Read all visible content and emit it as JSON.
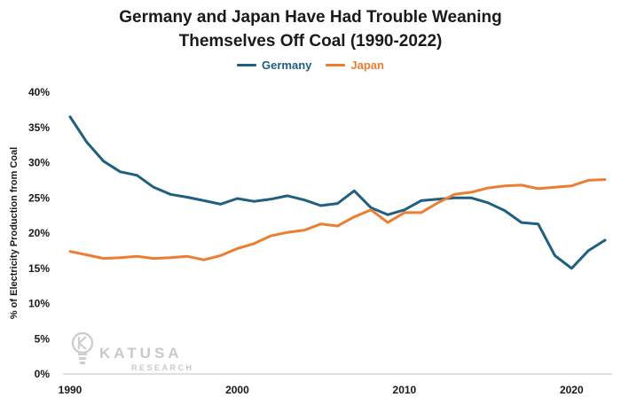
{
  "chart_data": {
    "type": "line",
    "title": "Germany and Japan Have Had Trouble Weaning Themselves Off Coal (1990-2022)",
    "title_lines": [
      "Germany and Japan Have Had Trouble Weaning",
      "Themselves Off Coal (1990-2022)"
    ],
    "xlabel": "",
    "ylabel": "% of Electricity Production from Coal",
    "xlim": [
      1990,
      2022
    ],
    "ylim": [
      0,
      40
    ],
    "x_ticks": [
      1990,
      2000,
      2010,
      2020
    ],
    "y_ticks": [
      "0%",
      "5%",
      "10%",
      "15%",
      "20%",
      "25%",
      "30%",
      "35%",
      "40%"
    ],
    "y_tick_values": [
      0,
      5,
      10,
      15,
      20,
      25,
      30,
      35,
      40
    ],
    "grid": false,
    "legend_position": "top-center",
    "x": [
      1990,
      1991,
      1992,
      1993,
      1994,
      1995,
      1996,
      1997,
      1998,
      1999,
      2000,
      2001,
      2002,
      2003,
      2004,
      2005,
      2006,
      2007,
      2008,
      2009,
      2010,
      2011,
      2012,
      2013,
      2014,
      2015,
      2016,
      2017,
      2018,
      2019,
      2020,
      2021,
      2022
    ],
    "series": [
      {
        "name": "Germany",
        "color": "#1f5f7f",
        "values": [
          36.5,
          32.9,
          30.2,
          28.7,
          28.2,
          26.5,
          25.5,
          25.1,
          24.6,
          24.1,
          24.9,
          24.5,
          24.8,
          25.3,
          24.7,
          23.9,
          24.2,
          26.0,
          23.6,
          22.6,
          23.3,
          24.6,
          24.8,
          25.0,
          25.0,
          24.3,
          23.2,
          21.5,
          21.3,
          16.8,
          15.0,
          17.5,
          19.0
        ]
      },
      {
        "name": "Japan",
        "color": "#ed7d31",
        "values": [
          17.4,
          16.9,
          16.4,
          16.5,
          16.7,
          16.4,
          16.5,
          16.7,
          16.2,
          16.8,
          17.8,
          18.5,
          19.6,
          20.1,
          20.4,
          21.3,
          21.0,
          22.3,
          23.3,
          21.5,
          22.9,
          22.9,
          24.3,
          25.5,
          25.8,
          26.4,
          26.7,
          26.8,
          26.3,
          26.5,
          26.7,
          27.5,
          27.6
        ]
      }
    ]
  },
  "watermark": {
    "brand": "KATUSA",
    "sub": "RESEARCH",
    "icon": "lightbulb-k-icon"
  }
}
